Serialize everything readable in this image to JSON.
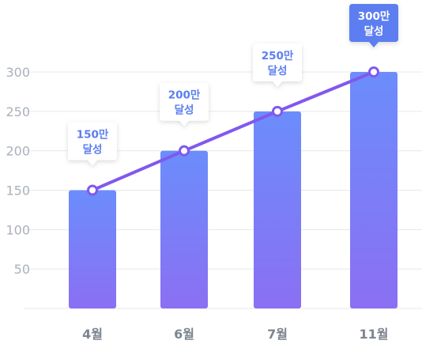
{
  "chart_data": {
    "type": "bar",
    "categories": [
      "4월",
      "6월",
      "7월",
      "11월"
    ],
    "values": [
      150,
      200,
      250,
      300
    ],
    "line_values": [
      150,
      200,
      250,
      300
    ],
    "yticks": [
      50,
      100,
      150,
      200,
      250,
      300
    ],
    "ylim": [
      0,
      300
    ],
    "grid": true,
    "annotations": [
      {
        "line1": "150만",
        "line2": "달성",
        "highlight": false
      },
      {
        "line1": "200만",
        "line2": "달성",
        "highlight": false
      },
      {
        "line1": "250만",
        "line2": "달성",
        "highlight": false
      },
      {
        "line1": "300만",
        "line2": "달성",
        "highlight": true
      }
    ]
  },
  "colors": {
    "bar_top": "#6b8dfb",
    "bar_bottom": "#8b6ff3",
    "line": "#8158ee",
    "grid": "#e6e8ec",
    "callout_text": "#5b7ef0",
    "callout_highlight_bg": "#5b7ef0",
    "callout_highlight_text": "#ffffff"
  }
}
